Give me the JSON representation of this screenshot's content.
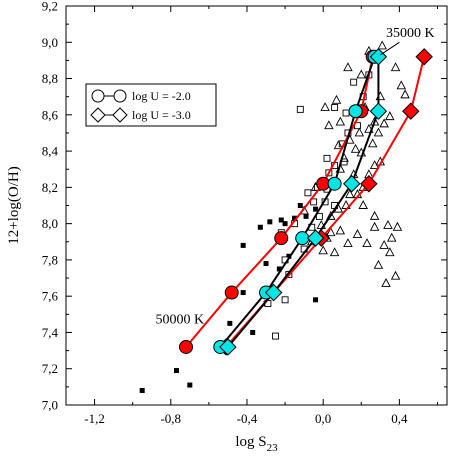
{
  "chart_data": {
    "type": "scatter",
    "xlabel_base": "log S",
    "xlabel_sub": "23",
    "ylabel": "12+log(O/H)",
    "xlim": [
      -1.35,
      0.65
    ],
    "ylim": [
      7.0,
      9.2
    ],
    "xticks": [
      -1.2,
      -0.8,
      -0.4,
      0.0,
      0.4
    ],
    "xtick_labels": [
      "-1,2",
      "-0,8",
      "-0,4",
      "0,0",
      "0,4"
    ],
    "yticks": [
      7.0,
      7.2,
      7.4,
      7.6,
      7.8,
      8.0,
      8.2,
      8.4,
      8.6,
      8.8,
      9.0,
      9.2
    ],
    "ytick_labels": [
      "7,0",
      "7,2",
      "7,4",
      "7,6",
      "7,8",
      "8,0",
      "8,2",
      "8,4",
      "8,6",
      "8,8",
      "9,0",
      "9,2"
    ],
    "annotations": [
      {
        "text": "35000 K",
        "x": 0.33,
        "y": 9.03
      },
      {
        "text": "50000 K",
        "x": -0.88,
        "y": 7.45
      }
    ],
    "legend": {
      "position": "top-left",
      "entries": [
        {
          "label": "log U = -2.0",
          "marker": "circle"
        },
        {
          "label": "log U = -3.0",
          "marker": "diamond"
        }
      ]
    },
    "colors": {
      "red": "#ff0000",
      "cyan": "#00e5e5",
      "black": "#000000"
    },
    "models": [
      {
        "line_color": "#ff0000",
        "marker": "circle",
        "fill": "#ff0000",
        "points": [
          [
            -0.72,
            7.32
          ],
          [
            -0.48,
            7.62
          ],
          [
            -0.22,
            7.92
          ],
          [
            0.0,
            8.22
          ],
          [
            0.2,
            8.62
          ],
          [
            0.26,
            8.92
          ]
        ]
      },
      {
        "line_color": "#ff0000",
        "marker": "diamond",
        "fill": "#ff0000",
        "points": [
          [
            -0.51,
            7.32
          ],
          [
            -0.26,
            7.62
          ],
          [
            -0.01,
            7.92
          ],
          [
            0.24,
            8.22
          ],
          [
            0.46,
            8.62
          ],
          [
            0.53,
            8.92
          ]
        ]
      },
      {
        "line_color": "#000000",
        "marker": "circle",
        "fill": "#00e5e5",
        "points": [
          [
            -0.54,
            7.32
          ],
          [
            -0.3,
            7.62
          ],
          [
            -0.11,
            7.92
          ],
          [
            0.06,
            8.22
          ],
          [
            0.17,
            8.62
          ],
          [
            0.27,
            8.92
          ]
        ]
      },
      {
        "line_color": "#000000",
        "marker": "diamond",
        "fill": "#00e5e5",
        "points": [
          [
            -0.5,
            7.32
          ],
          [
            -0.26,
            7.62
          ],
          [
            -0.04,
            7.92
          ],
          [
            0.15,
            8.22
          ],
          [
            0.29,
            8.62
          ],
          [
            0.29,
            8.92
          ]
        ]
      }
    ],
    "squares_filled": [
      [
        -0.95,
        7.08
      ],
      [
        -0.77,
        7.19
      ],
      [
        -0.7,
        7.11
      ],
      [
        -0.56,
        7.32
      ],
      [
        -0.49,
        7.45
      ],
      [
        -0.42,
        7.62
      ],
      [
        -0.37,
        7.4
      ],
      [
        -0.3,
        7.56
      ],
      [
        -0.42,
        7.88
      ],
      [
        -0.33,
        7.98
      ],
      [
        -0.22,
        8.02
      ],
      [
        -0.18,
        7.82
      ],
      [
        -0.12,
        7.92
      ],
      [
        -0.04,
        7.58
      ],
      [
        -0.23,
        7.75
      ],
      [
        -0.3,
        7.78
      ],
      [
        -0.15,
        8.03
      ],
      [
        -0.09,
        8.04
      ],
      [
        -0.04,
        8.08
      ],
      [
        -0.28,
        8.01
      ],
      [
        -0.12,
        8.1
      ],
      [
        -0.2,
        8.0
      ]
    ],
    "squares_open": [
      [
        -0.25,
        7.38
      ],
      [
        -0.29,
        7.56
      ],
      [
        -0.2,
        7.58
      ],
      [
        -0.18,
        7.72
      ],
      [
        -0.2,
        7.8
      ],
      [
        -0.1,
        7.86
      ],
      [
        -0.06,
        7.98
      ],
      [
        -0.15,
        8.0
      ],
      [
        -0.22,
        7.95
      ],
      [
        -0.02,
        8.04
      ],
      [
        -0.05,
        8.12
      ],
      [
        0.01,
        8.12
      ],
      [
        0.06,
        8.1
      ],
      [
        0.02,
        8.19
      ],
      [
        0.03,
        8.28
      ],
      [
        0.06,
        8.32
      ],
      [
        0.11,
        8.34
      ],
      [
        0.1,
        8.44
      ],
      [
        0.13,
        8.5
      ],
      [
        0.18,
        8.54
      ],
      [
        0.12,
        8.61
      ],
      [
        0.06,
        8.64
      ],
      [
        0.21,
        8.7
      ],
      [
        0.16,
        8.78
      ],
      [
        0.24,
        8.82
      ],
      [
        -0.12,
        8.63
      ],
      [
        0.02,
        8.36
      ],
      [
        -0.03,
        8.2
      ],
      [
        -0.08,
        8.17
      ]
    ],
    "triangles": [
      [
        -0.1,
        8.07
      ],
      [
        -0.06,
        7.9
      ],
      [
        -0.01,
        7.99
      ],
      [
        0.04,
        8.04
      ],
      [
        0.08,
        8.08
      ],
      [
        0.02,
        7.92
      ],
      [
        0.09,
        7.96
      ],
      [
        0.12,
        8.1
      ],
      [
        0.14,
        8.16
      ],
      [
        0.18,
        8.16
      ],
      [
        0.21,
        8.2
      ],
      [
        0.24,
        8.27
      ],
      [
        0.27,
        8.32
      ],
      [
        0.3,
        8.34
      ],
      [
        0.11,
        8.36
      ],
      [
        0.08,
        8.43
      ],
      [
        0.14,
        8.46
      ],
      [
        0.17,
        8.41
      ],
      [
        0.19,
        8.5
      ],
      [
        0.24,
        8.52
      ],
      [
        0.27,
        8.56
      ],
      [
        0.09,
        8.56
      ],
      [
        0.03,
        8.54
      ],
      [
        0.01,
        8.64
      ],
      [
        0.07,
        8.68
      ],
      [
        0.22,
        8.64
      ],
      [
        0.3,
        8.7
      ],
      [
        0.2,
        8.82
      ],
      [
        0.13,
        8.86
      ],
      [
        0.24,
        8.95
      ],
      [
        0.31,
        8.98
      ],
      [
        0.38,
        8.86
      ],
      [
        0.41,
        8.76
      ],
      [
        0.43,
        8.71
      ],
      [
        0.35,
        8.59
      ],
      [
        0.16,
        8.27
      ],
      [
        0.21,
        8.1
      ],
      [
        0.27,
        8.04
      ],
      [
        0.34,
        7.99
      ],
      [
        0.36,
        7.92
      ],
      [
        0.39,
        7.98
      ],
      [
        0.32,
        7.88
      ],
      [
        0.35,
        7.84
      ],
      [
        0.29,
        7.77
      ],
      [
        0.38,
        7.71
      ],
      [
        0.33,
        7.67
      ],
      [
        0.06,
        7.84
      ],
      [
        0.0,
        7.85
      ],
      [
        0.04,
        7.95
      ],
      [
        0.13,
        7.89
      ],
      [
        0.18,
        7.94
      ],
      [
        0.23,
        7.89
      ],
      [
        0.27,
        7.98
      ],
      [
        -0.04,
        8.2
      ],
      [
        0.26,
        8.44
      ],
      [
        0.2,
        8.39
      ],
      [
        0.09,
        8.3
      ],
      [
        0.29,
        8.5
      ],
      [
        0.32,
        8.55
      ],
      [
        -0.04,
        7.94
      ]
    ]
  }
}
